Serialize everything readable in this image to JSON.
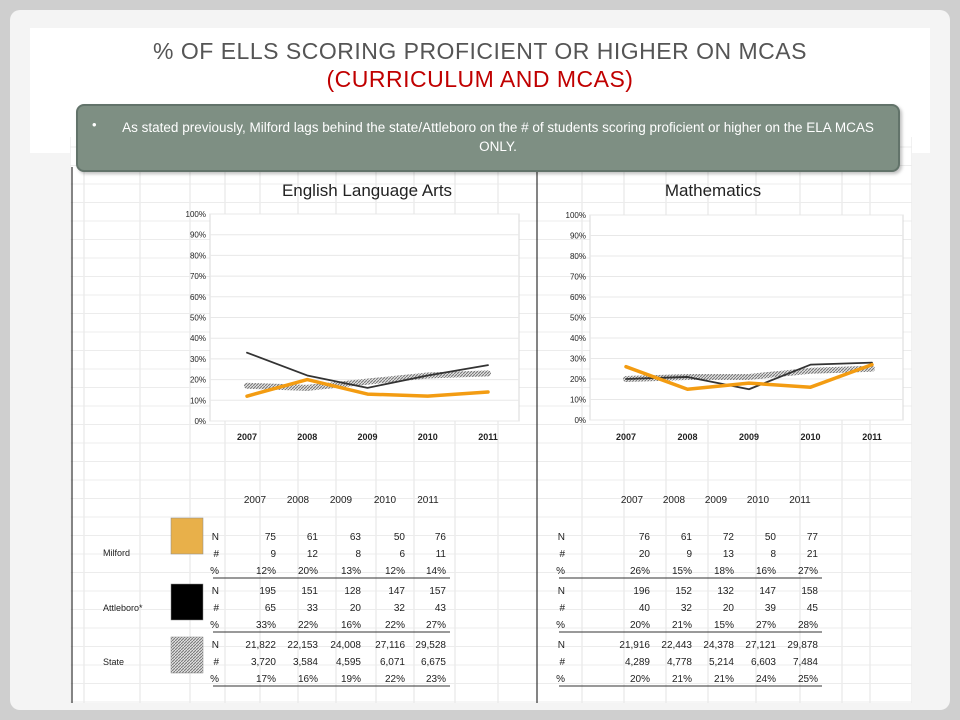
{
  "title": {
    "line1": "% OF ELLS SCORING PROFICIENT OR HIGHER ON MCAS",
    "line2": "(CURRICULUM AND MCAS)"
  },
  "callout": {
    "bullet": "•",
    "text": "As stated previously, Milford lags behind the state/Attleboro on the # of students scoring proficient or higher on the ELA MCAS ONLY."
  },
  "colors": {
    "milford": "#f39c12",
    "attleboro": "#333333",
    "state": "#999999",
    "milford_swatch": "#e8b04a",
    "attleboro_swatch": "#000000"
  },
  "chart_data": [
    {
      "type": "line",
      "title": "English Language Arts",
      "x": [
        "2007",
        "2008",
        "2009",
        "2010",
        "2011"
      ],
      "ylim": [
        0,
        100
      ],
      "yticks": [
        "0%",
        "10%",
        "20%",
        "30%",
        "40%",
        "50%",
        "60%",
        "70%",
        "80%",
        "90%",
        "100%"
      ],
      "series": [
        {
          "name": "Milford",
          "values": [
            12,
            20,
            13,
            12,
            14
          ]
        },
        {
          "name": "Attleboro*",
          "values": [
            33,
            22,
            16,
            22,
            27
          ]
        },
        {
          "name": "State",
          "values": [
            17,
            16,
            19,
            22,
            23
          ]
        }
      ]
    },
    {
      "type": "line",
      "title": "Mathematics",
      "x": [
        "2007",
        "2008",
        "2009",
        "2010",
        "2011"
      ],
      "ylim": [
        0,
        100
      ],
      "yticks": [
        "0%",
        "10%",
        "20%",
        "30%",
        "40%",
        "50%",
        "60%",
        "70%",
        "80%",
        "90%",
        "100%"
      ],
      "series": [
        {
          "name": "Milford",
          "values": [
            26,
            15,
            18,
            16,
            27
          ]
        },
        {
          "name": "Attleboro*",
          "values": [
            20,
            21,
            15,
            27,
            28
          ]
        },
        {
          "name": "State",
          "values": [
            20,
            21,
            21,
            24,
            25
          ]
        }
      ]
    }
  ],
  "table": {
    "years": [
      "2007",
      "2008",
      "2009",
      "2010",
      "2011"
    ],
    "groups": [
      {
        "name": "Milford",
        "ela": {
          "N": [
            "75",
            "61",
            "63",
            "50",
            "76"
          ],
          "#": [
            "9",
            "12",
            "8",
            "6",
            "11"
          ],
          "%": [
            "12%",
            "20%",
            "13%",
            "12%",
            "14%"
          ]
        },
        "math": {
          "N": [
            "76",
            "61",
            "72",
            "50",
            "77"
          ],
          "#": [
            "20",
            "9",
            "13",
            "8",
            "21"
          ],
          "%": [
            "26%",
            "15%",
            "18%",
            "16%",
            "27%"
          ]
        }
      },
      {
        "name": "Attleboro*",
        "ela": {
          "N": [
            "195",
            "151",
            "128",
            "147",
            "157"
          ],
          "#": [
            "65",
            "33",
            "20",
            "32",
            "43"
          ],
          "%": [
            "33%",
            "22%",
            "16%",
            "22%",
            "27%"
          ]
        },
        "math": {
          "N": [
            "196",
            "152",
            "132",
            "147",
            "158"
          ],
          "#": [
            "40",
            "32",
            "20",
            "39",
            "45"
          ],
          "%": [
            "20%",
            "21%",
            "15%",
            "27%",
            "28%"
          ]
        }
      },
      {
        "name": "State",
        "ela": {
          "N": [
            "21,822",
            "22,153",
            "24,008",
            "27,116",
            "29,528"
          ],
          "#": [
            "3,720",
            "3,584",
            "4,595",
            "6,071",
            "6,675"
          ],
          "%": [
            "17%",
            "16%",
            "19%",
            "22%",
            "23%"
          ]
        },
        "math": {
          "N": [
            "21,916",
            "22,443",
            "24,378",
            "27,121",
            "29,878"
          ],
          "#": [
            "4,289",
            "4,778",
            "5,214",
            "6,603",
            "7,484"
          ],
          "%": [
            "20%",
            "21%",
            "21%",
            "24%",
            "25%"
          ]
        }
      }
    ],
    "row_labels": [
      "N",
      "#",
      "%"
    ]
  }
}
